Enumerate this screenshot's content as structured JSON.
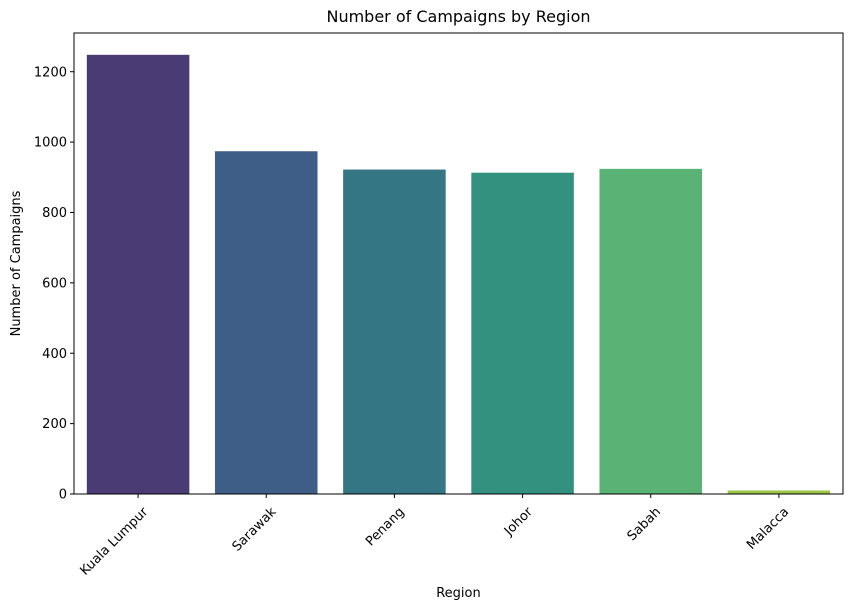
{
  "chart_data": {
    "type": "bar",
    "title": "Number of Campaigns by Region",
    "xlabel": "Region",
    "ylabel": "Number of Campaigns",
    "categories": [
      "Kuala Lumpur",
      "Sarawak",
      "Penang",
      "Johor",
      "Sabah",
      "Malacca"
    ],
    "values": [
      1248,
      974,
      922,
      913,
      924,
      10
    ],
    "colors": [
      "#4a3b75",
      "#3f5e87",
      "#357685",
      "#32917f",
      "#5ab275",
      "#9cc848"
    ],
    "ylim": [
      0,
      1310
    ],
    "yticks": [
      0,
      200,
      400,
      600,
      800,
      1000,
      1200
    ],
    "ytick_labels": [
      "0",
      "200",
      "400",
      "600",
      "800",
      "1000",
      "1200"
    ],
    "grid": false,
    "legend": "none"
  }
}
